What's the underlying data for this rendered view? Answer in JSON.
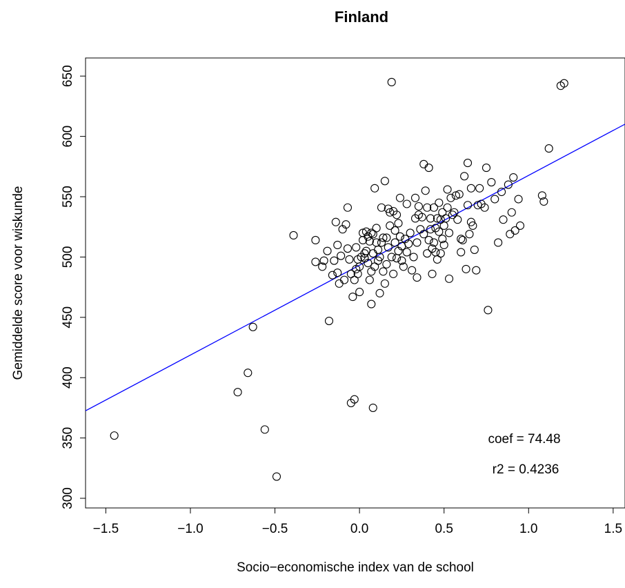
{
  "chart_data": {
    "type": "scatter",
    "title": "Finland",
    "xlabel": "Socio−economische index van de school",
    "ylabel": "Gemiddelde score voor wiskunde",
    "xlim": [
      -1.62,
      1.57
    ],
    "ylim": [
      292,
      665
    ],
    "xticks": [
      -1.5,
      -1.0,
      -0.5,
      0.0,
      0.5,
      1.0,
      1.5
    ],
    "xtick_labels": [
      "−1.5",
      "−1.0",
      "−0.5",
      "0.0",
      "0.5",
      "1.0",
      "1.5"
    ],
    "yticks": [
      300,
      350,
      400,
      450,
      500,
      550,
      600,
      650
    ],
    "ytick_labels": [
      "300",
      "350",
      "400",
      "450",
      "500",
      "550",
      "600",
      "650"
    ],
    "grid": false,
    "regression": {
      "intercept": 493.2,
      "slope": 74.48,
      "color": "#0000ff"
    },
    "annotations": [
      {
        "label": "coef = ",
        "value": "74.48"
      },
      {
        "label": "r2 = ",
        "value": "0.4236"
      }
    ],
    "points": [
      [
        -1.45,
        352
      ],
      [
        -0.72,
        388
      ],
      [
        -0.66,
        404
      ],
      [
        -0.63,
        442
      ],
      [
        -0.56,
        357
      ],
      [
        -0.49,
        318
      ],
      [
        -0.39,
        518
      ],
      [
        -0.26,
        514
      ],
      [
        -0.26,
        496
      ],
      [
        -0.22,
        492
      ],
      [
        -0.21,
        497
      ],
      [
        -0.19,
        505
      ],
      [
        -0.18,
        447
      ],
      [
        -0.16,
        485
      ],
      [
        -0.15,
        497
      ],
      [
        -0.14,
        529
      ],
      [
        -0.13,
        487
      ],
      [
        -0.13,
        510
      ],
      [
        -0.12,
        478
      ],
      [
        -0.11,
        501
      ],
      [
        -0.1,
        523
      ],
      [
        -0.09,
        481
      ],
      [
        -0.08,
        527
      ],
      [
        -0.07,
        541
      ],
      [
        -0.07,
        507
      ],
      [
        -0.06,
        498
      ],
      [
        -0.05,
        486
      ],
      [
        -0.05,
        379
      ],
      [
        -0.04,
        467
      ],
      [
        -0.03,
        481
      ],
      [
        -0.03,
        382
      ],
      [
        -0.02,
        490
      ],
      [
        -0.02,
        508
      ],
      [
        -0.01,
        498
      ],
      [
        -0.01,
        486
      ],
      [
        0.0,
        471
      ],
      [
        0.0,
        492
      ],
      [
        0.01,
        500
      ],
      [
        0.02,
        514
      ],
      [
        0.02,
        520
      ],
      [
        0.03,
        499
      ],
      [
        0.03,
        503
      ],
      [
        0.04,
        505
      ],
      [
        0.04,
        521
      ],
      [
        0.05,
        517
      ],
      [
        0.05,
        495
      ],
      [
        0.06,
        481
      ],
      [
        0.06,
        513
      ],
      [
        0.07,
        520
      ],
      [
        0.07,
        461
      ],
      [
        0.07,
        488
      ],
      [
        0.08,
        503
      ],
      [
        0.08,
        519
      ],
      [
        0.08,
        375
      ],
      [
        0.09,
        557
      ],
      [
        0.09,
        492
      ],
      [
        0.1,
        512
      ],
      [
        0.1,
        524
      ],
      [
        0.11,
        497
      ],
      [
        0.11,
        506
      ],
      [
        0.12,
        470
      ],
      [
        0.12,
        500
      ],
      [
        0.13,
        541
      ],
      [
        0.13,
        512
      ],
      [
        0.14,
        516
      ],
      [
        0.14,
        488
      ],
      [
        0.15,
        563
      ],
      [
        0.15,
        478
      ],
      [
        0.16,
        494
      ],
      [
        0.16,
        516
      ],
      [
        0.17,
        540
      ],
      [
        0.17,
        508
      ],
      [
        0.18,
        537
      ],
      [
        0.18,
        526
      ],
      [
        0.19,
        645
      ],
      [
        0.19,
        500
      ],
      [
        0.2,
        538
      ],
      [
        0.2,
        486
      ],
      [
        0.21,
        522
      ],
      [
        0.21,
        512
      ],
      [
        0.22,
        535
      ],
      [
        0.22,
        499
      ],
      [
        0.23,
        505
      ],
      [
        0.23,
        528
      ],
      [
        0.24,
        517
      ],
      [
        0.24,
        549
      ],
      [
        0.25,
        497
      ],
      [
        0.25,
        509
      ],
      [
        0.26,
        492
      ],
      [
        0.27,
        515
      ],
      [
        0.28,
        504
      ],
      [
        0.28,
        544
      ],
      [
        0.29,
        511
      ],
      [
        0.3,
        520
      ],
      [
        0.31,
        489
      ],
      [
        0.32,
        500
      ],
      [
        0.33,
        549
      ],
      [
        0.33,
        532
      ],
      [
        0.34,
        483
      ],
      [
        0.34,
        512
      ],
      [
        0.35,
        542
      ],
      [
        0.35,
        535
      ],
      [
        0.36,
        523
      ],
      [
        0.37,
        533
      ],
      [
        0.38,
        577
      ],
      [
        0.38,
        519
      ],
      [
        0.39,
        555
      ],
      [
        0.4,
        503
      ],
      [
        0.4,
        541
      ],
      [
        0.41,
        574
      ],
      [
        0.41,
        514
      ],
      [
        0.42,
        523
      ],
      [
        0.42,
        532
      ],
      [
        0.43,
        486
      ],
      [
        0.43,
        507
      ],
      [
        0.44,
        541
      ],
      [
        0.44,
        512
      ],
      [
        0.45,
        524
      ],
      [
        0.45,
        504
      ],
      [
        0.46,
        532
      ],
      [
        0.46,
        498
      ],
      [
        0.47,
        545
      ],
      [
        0.47,
        521
      ],
      [
        0.48,
        531
      ],
      [
        0.48,
        503
      ],
      [
        0.49,
        537
      ],
      [
        0.49,
        515
      ],
      [
        0.5,
        510
      ],
      [
        0.5,
        526
      ],
      [
        0.51,
        532
      ],
      [
        0.52,
        556
      ],
      [
        0.52,
        541
      ],
      [
        0.53,
        482
      ],
      [
        0.53,
        520
      ],
      [
        0.54,
        549
      ],
      [
        0.55,
        535
      ],
      [
        0.56,
        537
      ],
      [
        0.57,
        551
      ],
      [
        0.58,
        531
      ],
      [
        0.59,
        552
      ],
      [
        0.6,
        515
      ],
      [
        0.6,
        504
      ],
      [
        0.61,
        514
      ],
      [
        0.62,
        567
      ],
      [
        0.63,
        490
      ],
      [
        0.64,
        578
      ],
      [
        0.64,
        543
      ],
      [
        0.65,
        519
      ],
      [
        0.66,
        557
      ],
      [
        0.66,
        529
      ],
      [
        0.67,
        526
      ],
      [
        0.68,
        506
      ],
      [
        0.69,
        489
      ],
      [
        0.7,
        543
      ],
      [
        0.71,
        557
      ],
      [
        0.72,
        544
      ],
      [
        0.74,
        541
      ],
      [
        0.75,
        574
      ],
      [
        0.76,
        456
      ],
      [
        0.78,
        562
      ],
      [
        0.8,
        548
      ],
      [
        0.82,
        512
      ],
      [
        0.84,
        554
      ],
      [
        0.85,
        531
      ],
      [
        0.88,
        560
      ],
      [
        0.89,
        519
      ],
      [
        0.9,
        537
      ],
      [
        0.91,
        566
      ],
      [
        0.92,
        522
      ],
      [
        0.94,
        548
      ],
      [
        0.95,
        526
      ],
      [
        1.08,
        551
      ],
      [
        1.09,
        546
      ],
      [
        1.12,
        590
      ],
      [
        1.19,
        642
      ],
      [
        1.21,
        644
      ]
    ]
  }
}
